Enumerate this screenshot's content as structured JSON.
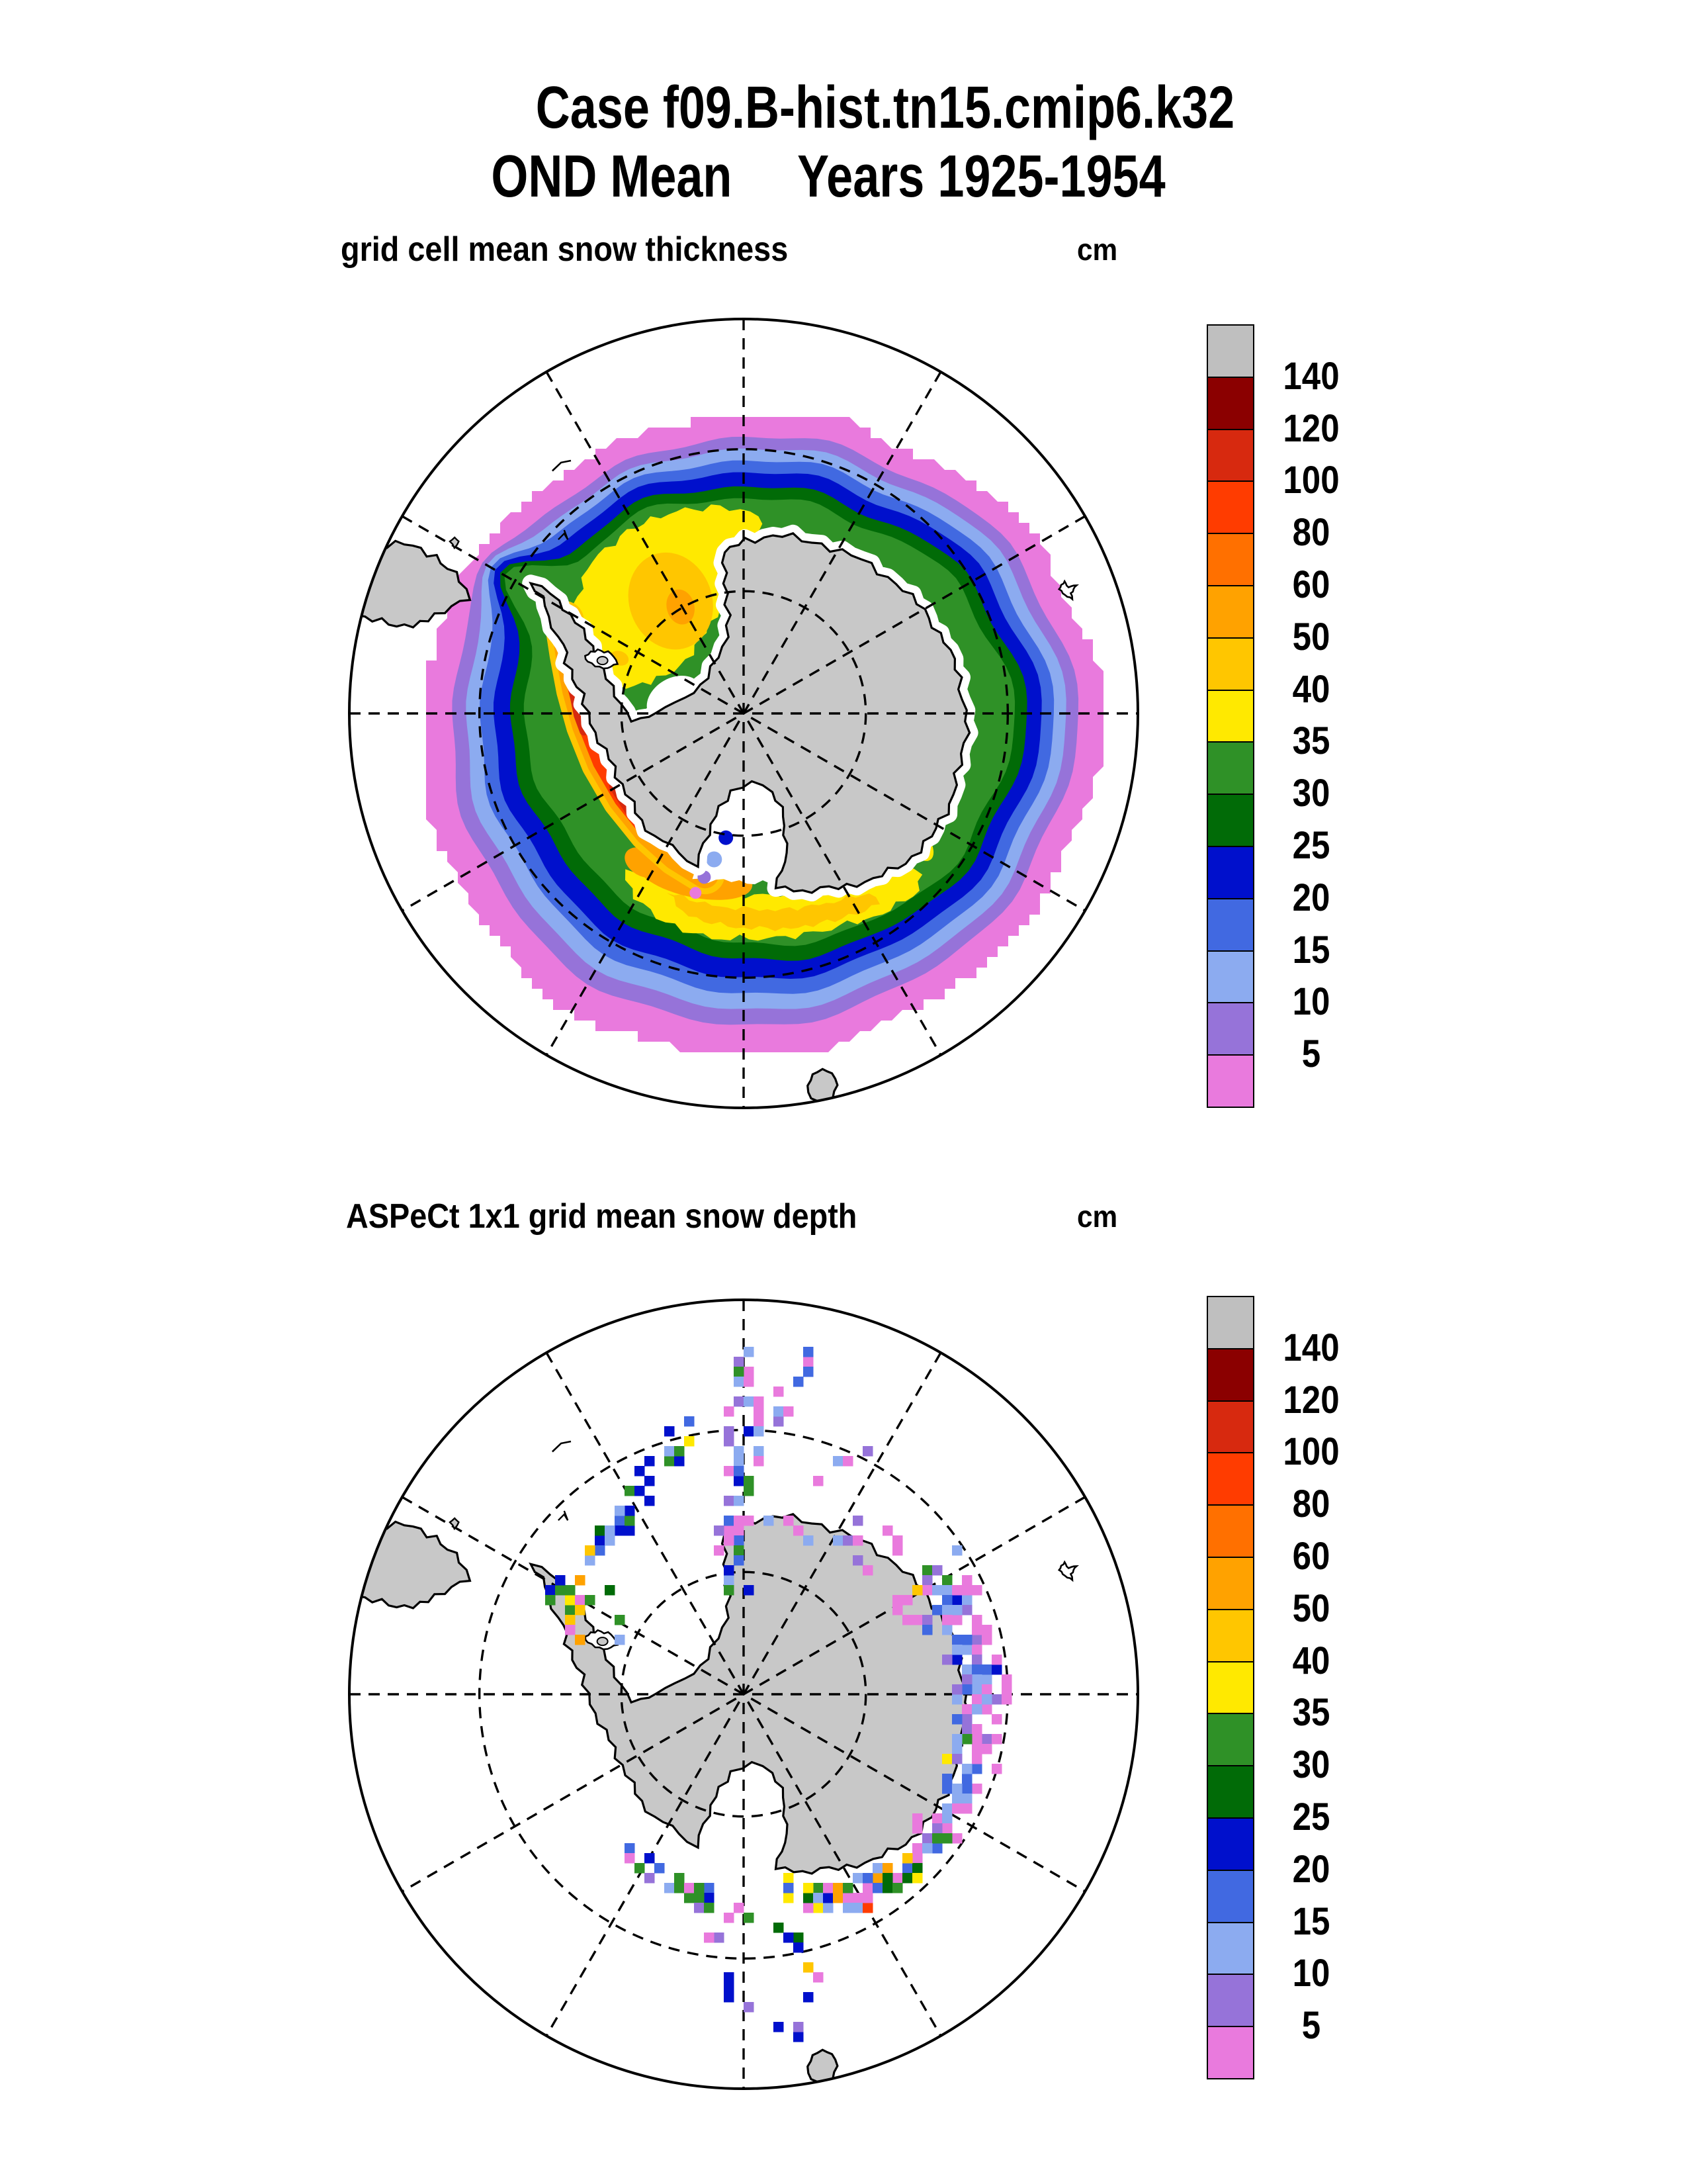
{
  "title": {
    "line1": "Case f09.B-hist.tn15.cmip6.k32",
    "line2": "OND Mean     Years 1925-1954"
  },
  "panels": [
    {
      "subtitle": "grid cell mean snow thickness",
      "unit": "cm"
    },
    {
      "subtitle": "ASPeCt 1x1 grid mean snow depth",
      "unit": "cm"
    }
  ],
  "chart_data": {
    "type": "heatmap",
    "figure": "Two south-polar stereographic maps of Antarctic sea-ice snow depth (cm): modeled grid-cell mean snow thickness (filled contours) and ASPeCt 1x1-degree ship-track observed mean snow depth (pixel squares). Shared discrete colorbar.",
    "projection": {
      "type": "south polar stereographic, Antarctica centered",
      "latitude_circles_radius_fraction": [
        0.31,
        0.67
      ],
      "meridian_spacing_deg": 30,
      "graticule_style": "dashed"
    },
    "colorbar": {
      "unit": "cm",
      "tick_labels": [
        "140",
        "120",
        "100",
        "80",
        "60",
        "50",
        "40",
        "35",
        "30",
        "25",
        "20",
        "15",
        "10",
        "5"
      ],
      "levels_cm_bottom_to_top": [
        5,
        10,
        15,
        20,
        25,
        30,
        35,
        40,
        50,
        60,
        80,
        100,
        120,
        140
      ],
      "colors_top_to_bottom": [
        {
          "name": "gray",
          "hex": "#bfbfbf",
          "bin": "> 140"
        },
        {
          "name": "darkred",
          "hex": "#8b0000",
          "bin": "120-140"
        },
        {
          "name": "red",
          "hex": "#d7290f",
          "bin": "100-120"
        },
        {
          "name": "orangered",
          "hex": "#ff3c00",
          "bin": "80-100"
        },
        {
          "name": "darkorange",
          "hex": "#ff7000",
          "bin": "60-80"
        },
        {
          "name": "orange",
          "hex": "#ffa200",
          "bin": "50-60"
        },
        {
          "name": "gold",
          "hex": "#ffc600",
          "bin": "40-50"
        },
        {
          "name": "yellow",
          "hex": "#ffe900",
          "bin": "35-40"
        },
        {
          "name": "green",
          "hex": "#2f9127",
          "bin": "30-35"
        },
        {
          "name": "darkgreen",
          "hex": "#016b07",
          "bin": "25-30"
        },
        {
          "name": "blue",
          "hex": "#0010cc",
          "bin": "20-25"
        },
        {
          "name": "royalblue",
          "hex": "#4169e1",
          "bin": "15-20"
        },
        {
          "name": "lightblue",
          "hex": "#8cabf0",
          "bin": "10-15"
        },
        {
          "name": "purple",
          "hex": "#9673d9",
          "bin": "5-10"
        },
        {
          "name": "pink",
          "hex": "#e97add",
          "bin": "< 5"
        }
      ]
    },
    "panel1_content": "Continuous ring of snow on sea ice around Antarctica: 5-25 cm (pink/purple/blue) at outer blocky ice edge, 25-35 cm (greens) inside, 35-60 cm (yellow/gold) over Weddell and Ross sectors, 60-100+ cm (orange/red) band west of the Antarctic Peninsula and along Bellingshausen-Amundsen coast.",
    "panel2_content": "Sparse ship-track observation pixels: mostly 5-25 cm (pink/purple/blue) values; dense multicolor cluster along East Antarctic coast (right side) and near Ross Sea coast, with scattered 30-60 cm (green/yellow/gold/orange) pixels near the coast and toward the Antarctic Peninsula.",
    "land_color": "#c8c8c8"
  }
}
